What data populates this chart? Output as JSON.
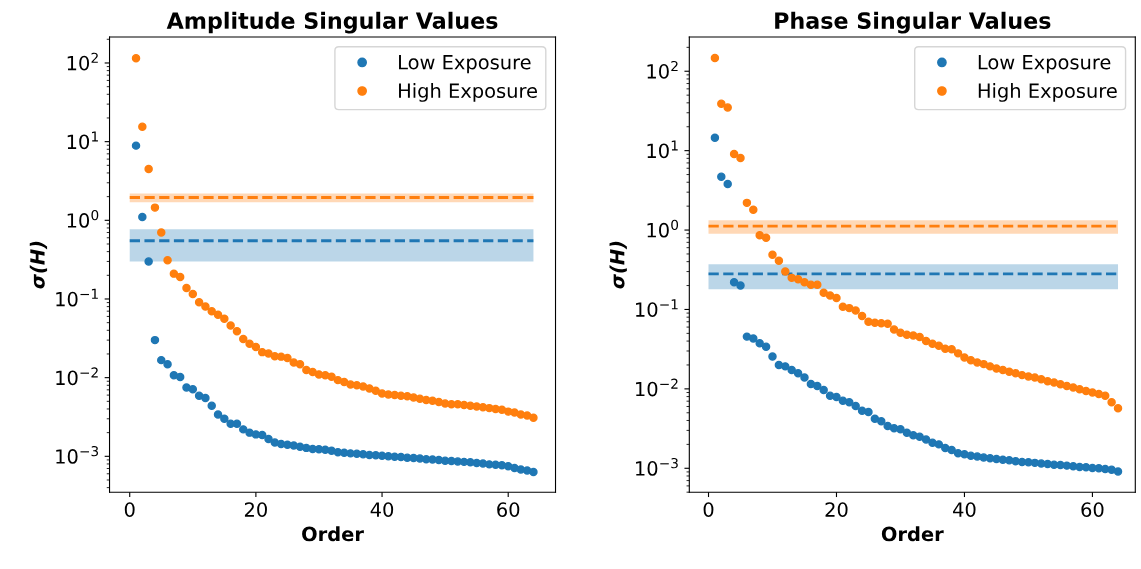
{
  "chart_data": [
    {
      "type": "scatter",
      "title": "Amplitude Singular Values",
      "xlabel": "Order",
      "ylabel": "σ(H)",
      "log": "y",
      "marker": "circle",
      "legend": "top right",
      "grid": false,
      "x": [
        1,
        2,
        3,
        4,
        5,
        6,
        7,
        8,
        9,
        10,
        11,
        12,
        13,
        14,
        15,
        16,
        17,
        18,
        19,
        20,
        21,
        22,
        23,
        24,
        25,
        26,
        27,
        28,
        29,
        30,
        31,
        32,
        33,
        34,
        35,
        36,
        37,
        38,
        39,
        40,
        41,
        42,
        43,
        44,
        45,
        46,
        47,
        48,
        49,
        50,
        51,
        52,
        53,
        54,
        55,
        56,
        57,
        58,
        59,
        60,
        61,
        62,
        63,
        64
      ],
      "xlim": [
        -3.2,
        67.5
      ],
      "xticks": [
        0,
        20,
        40,
        60
      ],
      "ylim": [
        0.00035,
        214
      ],
      "yticks": [
        {
          "value": 0.001,
          "label": "10$^{−3}$"
        },
        {
          "value": 0.01,
          "label": "10$^{−2}$"
        },
        {
          "value": 0.1,
          "label": "10$^{−1}$"
        },
        {
          "value": 1,
          "label": "10$^{0}$"
        },
        {
          "value": 10,
          "label": "10$^{1}$"
        },
        {
          "value": 100,
          "label": "10$^{2}$"
        }
      ],
      "series": [
        {
          "name": "Low Exposure",
          "color": "#1f77b4",
          "values": [
            8.9,
            1.1,
            0.3,
            0.03,
            0.0167,
            0.0148,
            0.0107,
            0.0102,
            0.0075,
            0.0071,
            0.0059,
            0.0055,
            0.0044,
            0.0034,
            0.003,
            0.0026,
            0.0026,
            0.0022,
            0.002,
            0.0019,
            0.00187,
            0.00166,
            0.0015,
            0.00143,
            0.0014,
            0.00137,
            0.00132,
            0.00128,
            0.00124,
            0.00123,
            0.00121,
            0.00118,
            0.00113,
            0.00111,
            0.00109,
            0.00108,
            0.00106,
            0.00104,
            0.00103,
            0.00102,
            0.001,
            0.00099,
            0.00098,
            0.00096,
            0.00095,
            0.00094,
            0.00092,
            0.00091,
            0.0009,
            0.00088,
            0.00087,
            0.00086,
            0.00085,
            0.00084,
            0.00082,
            0.00081,
            0.00079,
            0.00078,
            0.00077,
            0.00075,
            0.00071,
            0.00068,
            0.00066,
            0.00063
          ]
        },
        {
          "name": "High Exposure",
          "color": "#ff7f0e",
          "values": [
            115,
            15.5,
            4.5,
            1.45,
            0.7,
            0.31,
            0.21,
            0.19,
            0.138,
            0.116,
            0.091,
            0.08,
            0.07,
            0.063,
            0.056,
            0.046,
            0.039,
            0.031,
            0.027,
            0.0246,
            0.0211,
            0.0203,
            0.0187,
            0.0185,
            0.0178,
            0.0156,
            0.0148,
            0.0125,
            0.0118,
            0.011,
            0.0107,
            0.0103,
            0.0093,
            0.0088,
            0.0082,
            0.008,
            0.0077,
            0.0073,
            0.0068,
            0.0063,
            0.0061,
            0.006,
            0.0059,
            0.0058,
            0.0056,
            0.0054,
            0.0052,
            0.0051,
            0.0049,
            0.0047,
            0.0046,
            0.0046,
            0.0045,
            0.0044,
            0.0043,
            0.0042,
            0.0041,
            0.004,
            0.0039,
            0.0037,
            0.0036,
            0.0034,
            0.0033,
            0.0031
          ]
        }
      ],
      "ref_lines": [
        {
          "axis": "y",
          "value": 1.95,
          "color": "#ff7f0e",
          "line_style": "dashed"
        },
        {
          "axis": "y",
          "value": 0.55,
          "color": "#1f77b4",
          "line_style": "dashed"
        }
      ],
      "bands": [
        {
          "axis": "y",
          "from": 1.7,
          "to": 2.2,
          "color": "#ff7f0e"
        },
        {
          "axis": "y",
          "from": 0.3,
          "to": 0.77,
          "color": "#1f77b4"
        }
      ]
    },
    {
      "type": "scatter",
      "title": "Phase Singular Values",
      "xlabel": "Order",
      "ylabel": "σ(H)",
      "log": "y",
      "marker": "circle",
      "legend": "top right",
      "grid": false,
      "x": [
        1,
        2,
        3,
        4,
        5,
        6,
        7,
        8,
        9,
        10,
        11,
        12,
        13,
        14,
        15,
        16,
        17,
        18,
        19,
        20,
        21,
        22,
        23,
        24,
        25,
        26,
        27,
        28,
        29,
        30,
        31,
        32,
        33,
        34,
        35,
        36,
        37,
        38,
        39,
        40,
        41,
        42,
        43,
        44,
        45,
        46,
        47,
        48,
        49,
        50,
        51,
        52,
        53,
        54,
        55,
        56,
        57,
        58,
        59,
        60,
        61,
        62,
        63,
        64
      ],
      "xlim": [
        -3.0,
        66.7
      ],
      "xticks": [
        0,
        20,
        40,
        60
      ],
      "ylim": [
        0.0005,
        270
      ],
      "yticks": [
        {
          "value": 0.001,
          "label": "10$^{−3}$"
        },
        {
          "value": 0.01,
          "label": "10$^{−2}$"
        },
        {
          "value": 0.1,
          "label": "10$^{−1}$"
        },
        {
          "value": 1,
          "label": "10$^{0}$"
        },
        {
          "value": 10,
          "label": "10$^{1}$"
        },
        {
          "value": 100,
          "label": "10$^{2}$"
        }
      ],
      "series": [
        {
          "name": "Low Exposure",
          "color": "#1f77b4",
          "values": [
            14.5,
            4.7,
            3.8,
            0.22,
            0.2,
            0.0455,
            0.043,
            0.0375,
            0.034,
            0.0255,
            0.02,
            0.0192,
            0.0173,
            0.0157,
            0.0139,
            0.0115,
            0.0109,
            0.0097,
            0.0082,
            0.0079,
            0.0071,
            0.0068,
            0.0061,
            0.0053,
            0.0051,
            0.0042,
            0.0039,
            0.0034,
            0.0032,
            0.0031,
            0.0028,
            0.0026,
            0.0025,
            0.0023,
            0.0021,
            0.002,
            0.0018,
            0.0017,
            0.00155,
            0.0015,
            0.00144,
            0.00141,
            0.00137,
            0.00134,
            0.00131,
            0.00128,
            0.00126,
            0.00123,
            0.0012,
            0.00119,
            0.00117,
            0.00115,
            0.00113,
            0.00111,
            0.0011,
            0.00108,
            0.00106,
            0.00104,
            0.00103,
            0.00101,
            0.001,
            0.00098,
            0.00096,
            0.00091
          ]
        },
        {
          "name": "High Exposure",
          "color": "#ff7f0e",
          "values": [
            147,
            39,
            35,
            9.1,
            8.1,
            2.2,
            1.8,
            0.86,
            0.8,
            0.49,
            0.41,
            0.3,
            0.25,
            0.24,
            0.22,
            0.205,
            0.205,
            0.162,
            0.15,
            0.139,
            0.108,
            0.104,
            0.097,
            0.083,
            0.07,
            0.068,
            0.067,
            0.066,
            0.056,
            0.051,
            0.048,
            0.047,
            0.045,
            0.04,
            0.037,
            0.035,
            0.032,
            0.0316,
            0.028,
            0.0248,
            0.023,
            0.0215,
            0.0205,
            0.0192,
            0.018,
            0.0173,
            0.0164,
            0.0157,
            0.0149,
            0.0143,
            0.0139,
            0.0132,
            0.0125,
            0.012,
            0.0114,
            0.0109,
            0.0104,
            0.0099,
            0.0094,
            0.009,
            0.0086,
            0.0082,
            0.0068,
            0.0057
          ]
        }
      ],
      "ref_lines": [
        {
          "axis": "y",
          "value": 1.12,
          "color": "#ff7f0e",
          "line_style": "dashed"
        },
        {
          "axis": "y",
          "value": 0.28,
          "color": "#1f77b4",
          "line_style": "dashed"
        }
      ],
      "bands": [
        {
          "axis": "y",
          "from": 0.9,
          "to": 1.33,
          "color": "#ff7f0e"
        },
        {
          "axis": "y",
          "from": 0.18,
          "to": 0.37,
          "color": "#1f77b4"
        }
      ]
    }
  ]
}
